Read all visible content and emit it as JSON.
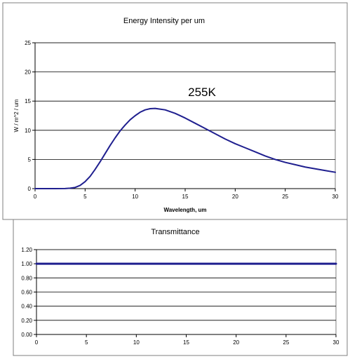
{
  "chart_data": [
    {
      "type": "line",
      "title": "Energy Intensity per um",
      "xlabel": "Wavelength, um",
      "ylabel": "W / m^2 / um",
      "xlim": [
        0,
        30
      ],
      "ylim": [
        0,
        25
      ],
      "x_ticks": [
        0,
        5,
        10,
        15,
        20,
        25,
        30
      ],
      "y_ticks": [
        0,
        5,
        10,
        15,
        20,
        25
      ],
      "x_tick_labels": [
        "0",
        "5",
        "10",
        "15",
        "20",
        "25",
        "30"
      ],
      "y_tick_labels": [
        "0",
        "5",
        "10",
        "15",
        "20",
        "25"
      ],
      "grid": true,
      "annotation": "255K",
      "series": [
        {
          "color": "#1f1f8f",
          "x": [
            0,
            1,
            2,
            3,
            3.5,
            4,
            4.5,
            5,
            5.5,
            6,
            6.5,
            7,
            7.5,
            8,
            8.5,
            9,
            9.5,
            10,
            10.5,
            11,
            11.5,
            12,
            13,
            14,
            15,
            16,
            17,
            18,
            19,
            20,
            21,
            22,
            23,
            24,
            25,
            26,
            27,
            28,
            29,
            30
          ],
          "y": [
            0,
            0,
            0,
            0.02,
            0.07,
            0.2,
            0.55,
            1.2,
            2.1,
            3.3,
            4.6,
            6.0,
            7.4,
            8.7,
            9.9,
            10.9,
            11.8,
            12.5,
            13.1,
            13.5,
            13.7,
            13.75,
            13.5,
            12.9,
            12.1,
            11.2,
            10.3,
            9.4,
            8.5,
            7.7,
            7.0,
            6.3,
            5.6,
            5.0,
            4.5,
            4.1,
            3.7,
            3.4,
            3.1,
            2.8
          ]
        }
      ]
    },
    {
      "type": "line",
      "title": "Transmittance",
      "xlim": [
        0,
        30
      ],
      "ylim": [
        0,
        1.2
      ],
      "x_ticks": [
        0,
        5,
        10,
        15,
        20,
        25,
        30
      ],
      "y_ticks": [
        0,
        0.2,
        0.4,
        0.6,
        0.8,
        1.0,
        1.2
      ],
      "x_tick_labels": [
        "0",
        "5",
        "10",
        "15",
        "20",
        "25",
        "30"
      ],
      "y_tick_labels": [
        "0.00",
        "0.20",
        "0.40",
        "0.60",
        "0.80",
        "1.00",
        "1.20"
      ],
      "grid": true,
      "series": [
        {
          "color": "#1f1f8f",
          "x": [
            0,
            30
          ],
          "y": [
            1.0,
            1.0
          ]
        }
      ]
    }
  ]
}
